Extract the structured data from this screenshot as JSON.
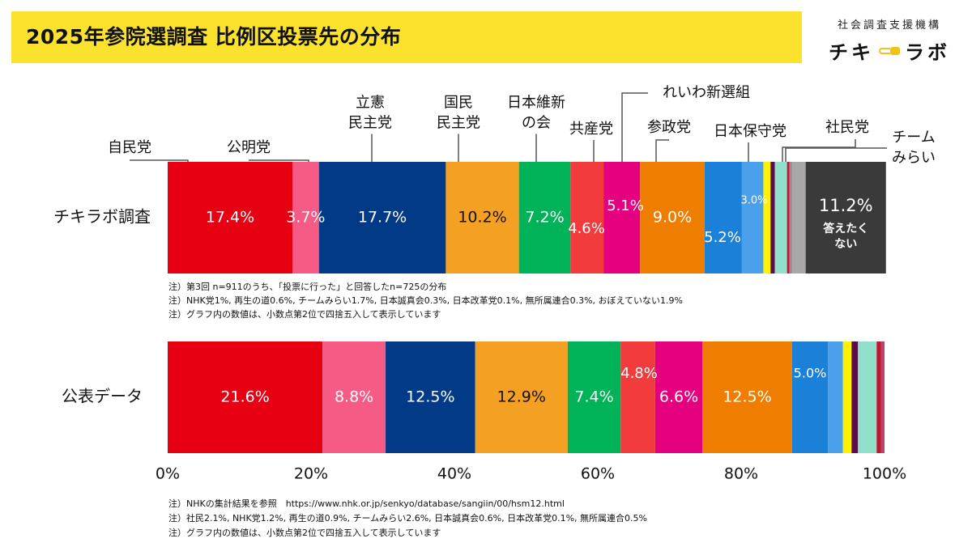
{
  "title": "2025年参院選調査 比例区投票先の分布",
  "org": {
    "name": "社会調査支援機構",
    "logo_left": "チキ",
    "logo_right": "ラボ"
  },
  "chart_data": {
    "type": "bar",
    "orientation": "horizontal-stacked-100",
    "xlim": [
      0,
      100
    ],
    "xticks": [
      "0%",
      "20%",
      "40%",
      "60%",
      "80%",
      "100%"
    ],
    "party_labels": [
      [
        "自民党"
      ],
      [
        "公明党"
      ],
      [
        "立憲",
        "民主党"
      ],
      [
        "国民",
        "民主党"
      ],
      [
        "日本維新",
        "の会"
      ],
      [
        "共産党"
      ],
      [
        "れいわ新選組"
      ],
      [
        "参政党"
      ],
      [
        "日本保守党"
      ],
      [
        "社民党"
      ],
      [
        "チーム",
        "みらい"
      ]
    ],
    "rows": [
      {
        "label": "チキラボ調査",
        "segments": [
          {
            "value": 17.4,
            "color": "#e60012",
            "text": "17.4%"
          },
          {
            "value": 3.7,
            "color": "#f65b86",
            "text": "3.7%"
          },
          {
            "value": 17.7,
            "color": "#023a88",
            "text": "17.7%"
          },
          {
            "value": 10.2,
            "color": "#f3a023",
            "text": "10.2%"
          },
          {
            "value": 7.2,
            "color": "#00b258",
            "text": "7.2%"
          },
          {
            "value": 4.6,
            "color": "#f23b3d",
            "text": "4.6%"
          },
          {
            "value": 5.1,
            "color": "#e4007f",
            "text": "5.1%"
          },
          {
            "value": 9.0,
            "color": "#ef7d00",
            "text": "9.0%"
          },
          {
            "value": 5.2,
            "color": "#1b80d8",
            "text": "5.2%"
          },
          {
            "value": 3.0,
            "color": "#4aa0ea",
            "text": "3.0%"
          },
          {
            "value": 1.0,
            "color": "#fff100",
            "text": ""
          },
          {
            "value": 0.6,
            "color": "#5a0e49",
            "text": ""
          },
          {
            "value": 1.7,
            "color": "#90e0cc",
            "text": ""
          },
          {
            "value": 0.3,
            "color": "#b81b30",
            "text": ""
          },
          {
            "value": 0.1,
            "color": "#c04070",
            "text": ""
          },
          {
            "value": 0.3,
            "color": "#8a8a8a",
            "text": ""
          },
          {
            "value": 1.9,
            "color": "#a8a8a8",
            "text": ""
          },
          {
            "value": 11.2,
            "color": "#3a3a3a",
            "text": "11.2%",
            "sub": "答えたく\nない"
          }
        ]
      },
      {
        "label": "公表データ",
        "segments": [
          {
            "value": 21.6,
            "color": "#e60012",
            "text": "21.6%"
          },
          {
            "value": 8.8,
            "color": "#f65b86",
            "text": "8.8%"
          },
          {
            "value": 12.5,
            "color": "#023a88",
            "text": "12.5%"
          },
          {
            "value": 12.9,
            "color": "#f3a023",
            "text": "12.9%"
          },
          {
            "value": 7.4,
            "color": "#00b258",
            "text": "7.4%"
          },
          {
            "value": 4.8,
            "color": "#f23b3d",
            "text": "4.8%"
          },
          {
            "value": 6.6,
            "color": "#e4007f",
            "text": "6.6%"
          },
          {
            "value": 12.5,
            "color": "#ef7d00",
            "text": "12.5%"
          },
          {
            "value": 5.0,
            "color": "#1b80d8",
            "text": "5.0%"
          },
          {
            "value": 2.1,
            "color": "#4aa0ea",
            "text": ""
          },
          {
            "value": 1.2,
            "color": "#fff100",
            "text": ""
          },
          {
            "value": 0.9,
            "color": "#5a0e49",
            "text": ""
          },
          {
            "value": 2.6,
            "color": "#90e0cc",
            "text": ""
          },
          {
            "value": 0.6,
            "color": "#b81b30",
            "text": ""
          },
          {
            "value": 0.5,
            "color": "#c04070",
            "text": ""
          }
        ]
      }
    ]
  },
  "notes_survey": [
    "注）第3回 n=911のうち、「投票に行った」と回答したn=725の分布",
    "注）NHK党1%, 再生の道0.6%, チームみらい1.7%, 日本誠真会0.3%, 日本改革党0.1%, 無所属連合0.3%, おぼえていない1.9%",
    "注）グラフ内の数値は、小数点第2位で四捨五入して表示しています"
  ],
  "notes_official": [
    "注）NHKの集計結果を参照　https://www.nhk.or.jp/senkyo/database/sangiin/00/hsm12.html",
    "注）社民2.1%, NHK党1.2%, 再生の道0.9%, チームみらい2.6%, 日本誠真会0.6%, 日本改革党0.1%, 無所属連合0.5%",
    "注）グラフ内の数値は、小数点第2位で四捨五入して表示しています"
  ]
}
